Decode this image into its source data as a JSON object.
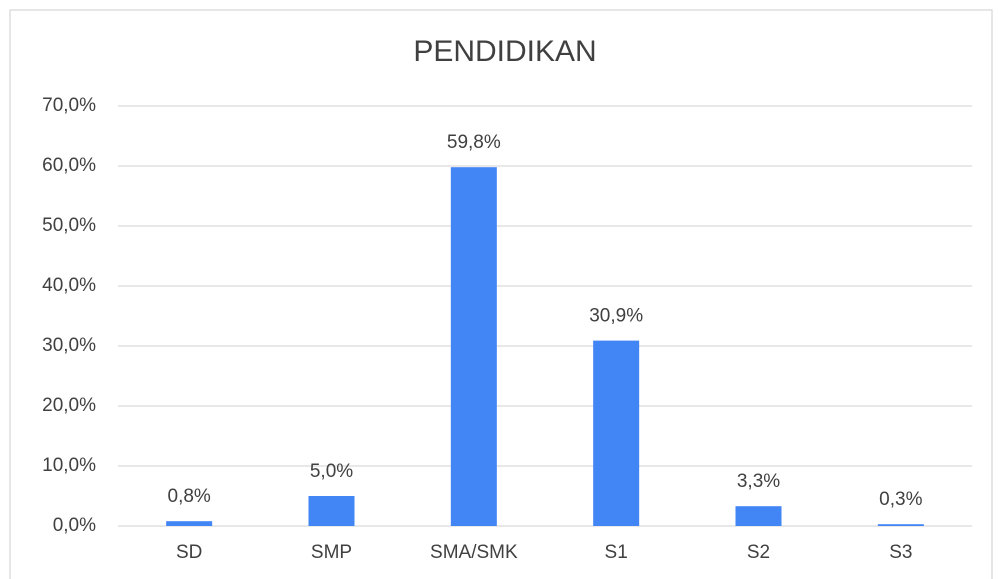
{
  "chart_data": {
    "type": "bar",
    "title": "PENDIDIKAN",
    "categories": [
      "SD",
      "SMP",
      "SMA/SMK",
      "S1",
      "S2",
      "S3"
    ],
    "values": [
      0.8,
      5.0,
      59.8,
      30.9,
      3.3,
      0.3
    ],
    "value_labels": [
      "0,8%",
      "5,0%",
      "59,8%",
      "30,9%",
      "3,3%",
      "0,3%"
    ],
    "color": "#4285f4",
    "ylim": [
      0,
      70
    ],
    "yticks": [
      {
        "value": 0,
        "label": "0,0%"
      },
      {
        "value": 10,
        "label": "10,0%"
      },
      {
        "value": 20,
        "label": "20,0%"
      },
      {
        "value": 30,
        "label": "30,0%"
      },
      {
        "value": 40,
        "label": "40,0%"
      },
      {
        "value": 50,
        "label": "50,0%"
      },
      {
        "value": 60,
        "label": "60,0%"
      },
      {
        "value": 70,
        "label": "70,0%"
      }
    ],
    "grid": true
  }
}
